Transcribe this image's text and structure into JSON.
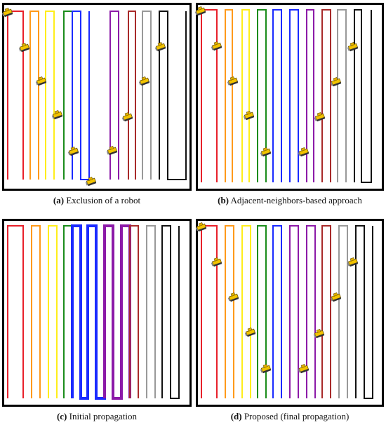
{
  "panels": [
    {
      "id": "a",
      "label": "(a)",
      "caption": "Exclusion of a robot"
    },
    {
      "id": "b",
      "label": "(b)",
      "caption": "Adjacent-neighbors-based approach"
    },
    {
      "id": "c",
      "label": "(c)",
      "caption": "Initial propagation"
    },
    {
      "id": "d",
      "label": "(d)",
      "caption": "Proposed (final propagation)"
    }
  ],
  "path_colors": [
    "#e8202a",
    "#ff9a1a",
    "#ffee1a",
    "#1a8c1a",
    "#1a2aff",
    "#8c1aa8",
    "#a82a2a",
    "#999999",
    "#111111"
  ],
  "icons": {
    "robot": "robot-icon"
  }
}
